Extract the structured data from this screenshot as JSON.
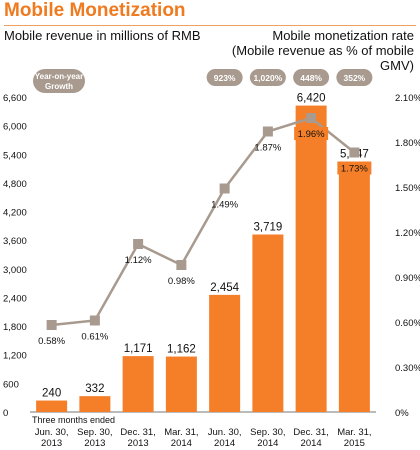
{
  "header": {
    "title": "Mobile Monetization",
    "left_axis_label": "Mobile revenue in millions of RMB",
    "right_axis_label_line1": "Mobile monetization rate",
    "right_axis_label_line2": "(Mobile revenue as % of mobile GMV)"
  },
  "colors": {
    "title": "#f07a1f",
    "bar": "#f57f29",
    "line": "#a89a8e",
    "marker": "#a89a8e",
    "pill": "#a89a8e",
    "highlight_label_bg": "#f57f29"
  },
  "chart_data": {
    "type": "bar",
    "categories_line1": [
      "Jun. 30,",
      "Sep. 30,",
      "Dec. 31,",
      "Mar. 31,",
      "Jun. 30,",
      "Sep. 30,",
      "Dec. 31,",
      "Mar. 31,"
    ],
    "categories_line2": [
      "2013",
      "2013",
      "2013",
      "2014",
      "2014",
      "2014",
      "2014",
      "2015"
    ],
    "x_axis_note": "Three months ended",
    "series": [
      {
        "name": "Mobile revenue in millions of RMB",
        "axis": "left",
        "values": [
          240,
          332,
          1171,
          1162,
          2454,
          3719,
          6420,
          5247
        ],
        "labels": [
          "240",
          "332",
          "1,171",
          "1,162",
          "2,454",
          "3,719",
          "6,420",
          "5,247"
        ]
      },
      {
        "name": "Mobile monetization rate",
        "axis": "right",
        "type": "line",
        "values": [
          0.58,
          0.61,
          1.12,
          0.98,
          1.49,
          1.87,
          1.96,
          1.73
        ],
        "labels": [
          "0.58%",
          "0.61%",
          "1.12%",
          "0.98%",
          "1.49%",
          "1.87%",
          "1.96%",
          "1.73%"
        ]
      }
    ],
    "left_ticks": [
      "0",
      "600",
      "1,200",
      "1,800",
      "2,400",
      "3,000",
      "3,600",
      "4,200",
      "4,800",
      "5,400",
      "6,000",
      "6,600"
    ],
    "right_ticks": [
      "0%",
      "0.30%",
      "0.60%",
      "0.90%",
      "1.20%",
      "1.50%",
      "1.80%",
      "2.10%"
    ],
    "ylim_left": [
      0,
      6600
    ],
    "ylim_right": [
      0,
      2.1
    ],
    "yoy_label_line1": "Year-on-year",
    "yoy_label_line2": "Growth",
    "yoy_growth": [
      "",
      "",
      "",
      "",
      "923%",
      "1,020%",
      "448%",
      "352%"
    ]
  }
}
